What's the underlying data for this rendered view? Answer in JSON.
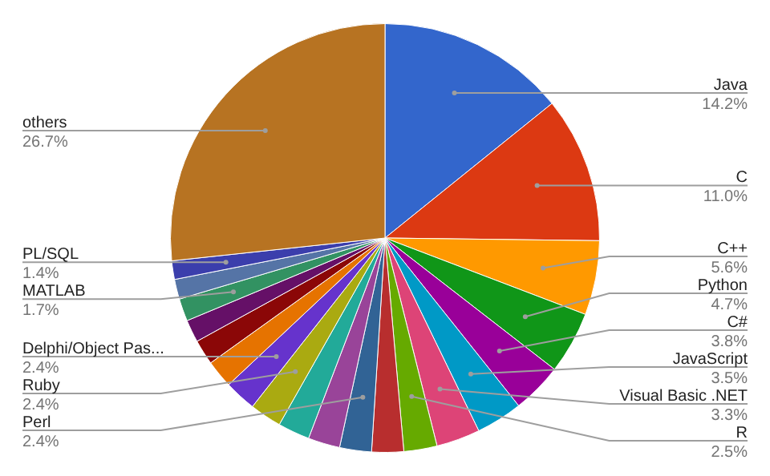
{
  "chart_data": {
    "type": "pie",
    "categories": [
      "Java",
      "C",
      "C++",
      "Python",
      "C#",
      "JavaScript",
      "Visual Basic .NET",
      "R",
      null,
      "Perl",
      null,
      null,
      "Ruby",
      "Delphi/Object Pas...",
      null,
      null,
      null,
      "MATLAB",
      null,
      "PL/SQL",
      "others"
    ],
    "values": [
      14.2,
      11.0,
      5.6,
      4.7,
      3.8,
      3.5,
      3.3,
      2.5,
      2.4,
      2.4,
      2.4,
      2.4,
      2.4,
      2.4,
      2.1,
      1.9,
      1.7,
      1.7,
      1.5,
      1.4,
      26.7
    ],
    "value_labels": [
      "14.2%",
      "11.0%",
      "5.6%",
      "4.7%",
      "3.8%",
      "3.5%",
      "3.3%",
      "2.5%",
      null,
      "2.4%",
      null,
      null,
      "2.4%",
      "2.4%",
      null,
      null,
      null,
      "1.7%",
      null,
      "1.4%",
      "26.7%"
    ],
    "colors": [
      "#3366cc",
      "#dc3912",
      "#ff9900",
      "#109618",
      "#990099",
      "#0099c6",
      "#dd4477",
      "#66aa00",
      "#b82e2e",
      "#316395",
      "#994499",
      "#22aa99",
      "#aaaa11",
      "#6633cc",
      "#e67300",
      "#8b0707",
      "#651067",
      "#329262",
      "#5574a6",
      "#3b3eac",
      "#b77322"
    ]
  }
}
